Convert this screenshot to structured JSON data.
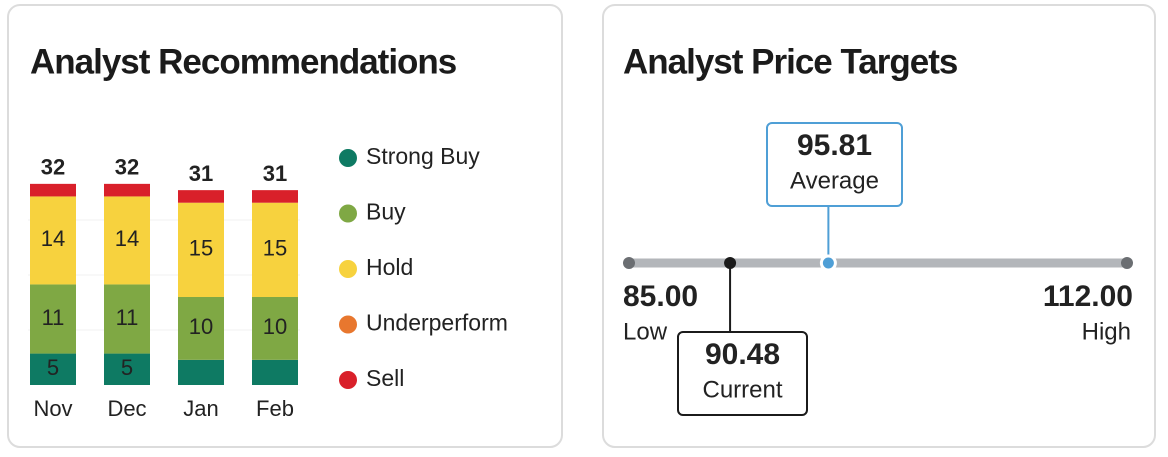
{
  "chart_data": [
    {
      "type": "stacked_bar",
      "title": "Analyst Recommendations",
      "categories": [
        "Nov",
        "Dec",
        "Jan",
        "Feb"
      ],
      "totals": [
        32,
        32,
        31,
        31
      ],
      "series": [
        {
          "name": "Strong Buy",
          "color": "#0e7a63",
          "values": [
            5,
            5,
            4,
            4
          ]
        },
        {
          "name": "Buy",
          "color": "#7fa844",
          "values": [
            11,
            11,
            10,
            10
          ]
        },
        {
          "name": "Hold",
          "color": "#f7d23e",
          "values": [
            14,
            14,
            15,
            15
          ]
        },
        {
          "name": "Underperform",
          "color": "#e8772e",
          "values": [
            0,
            0,
            0,
            0
          ]
        },
        {
          "name": "Sell",
          "color": "#d9202a",
          "values": [
            2,
            2,
            2,
            2
          ]
        }
      ],
      "ylim": [
        0,
        35
      ]
    },
    {
      "type": "range",
      "title": "Analyst Price Targets",
      "categories": [
        "Low",
        "Current",
        "Average",
        "High"
      ],
      "values": [
        85,
        90.48,
        95.81,
        112
      ],
      "value_labels": [
        "85.00",
        "90.48",
        "95.81",
        "112.00"
      ],
      "colors": [
        "#6b6e72",
        "#1b1b1b",
        "#4f9fd6",
        "#6b6e72"
      ],
      "xlim": [
        85,
        112
      ]
    }
  ]
}
